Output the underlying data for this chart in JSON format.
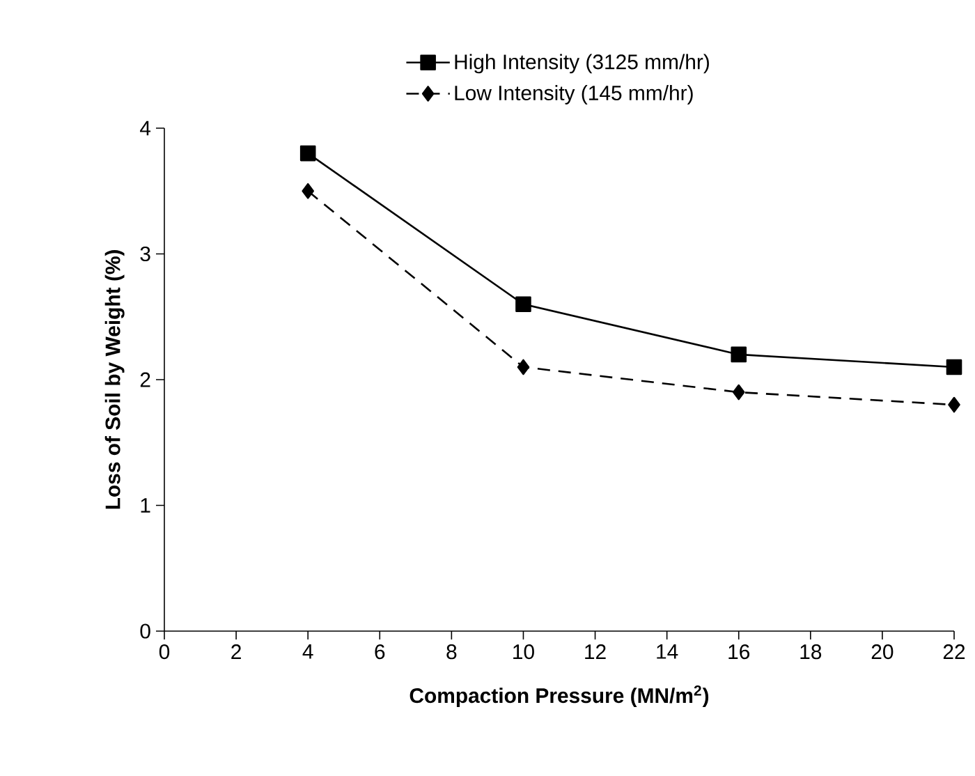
{
  "chart_data": {
    "type": "line",
    "xlabel": "Compaction Pressure (MN/m$^{2}$)",
    "ylabel": "Loss of Soil by Weight (%)",
    "x": [
      4,
      10,
      16,
      22
    ],
    "series": [
      {
        "name": "High Intensity (3125 mm/hr)",
        "color": "#000000",
        "marker": "square",
        "line_style": "solid",
        "values": [
          3.8,
          2.6,
          2.2,
          2.1
        ]
      },
      {
        "name": "Low Intensity (145 mm/hr)",
        "color": "#000000",
        "marker": "diamond",
        "line_style": "dashed",
        "values": [
          3.5,
          2.1,
          1.9,
          1.8
        ]
      }
    ],
    "xlim": [
      0,
      22
    ],
    "xticks": [
      0,
      2,
      4,
      6,
      8,
      10,
      12,
      14,
      16,
      18,
      20,
      22
    ],
    "ylim": [
      0,
      4
    ],
    "yticks": [
      0,
      1,
      2,
      3,
      4
    ],
    "grid": false,
    "legend": "top"
  }
}
